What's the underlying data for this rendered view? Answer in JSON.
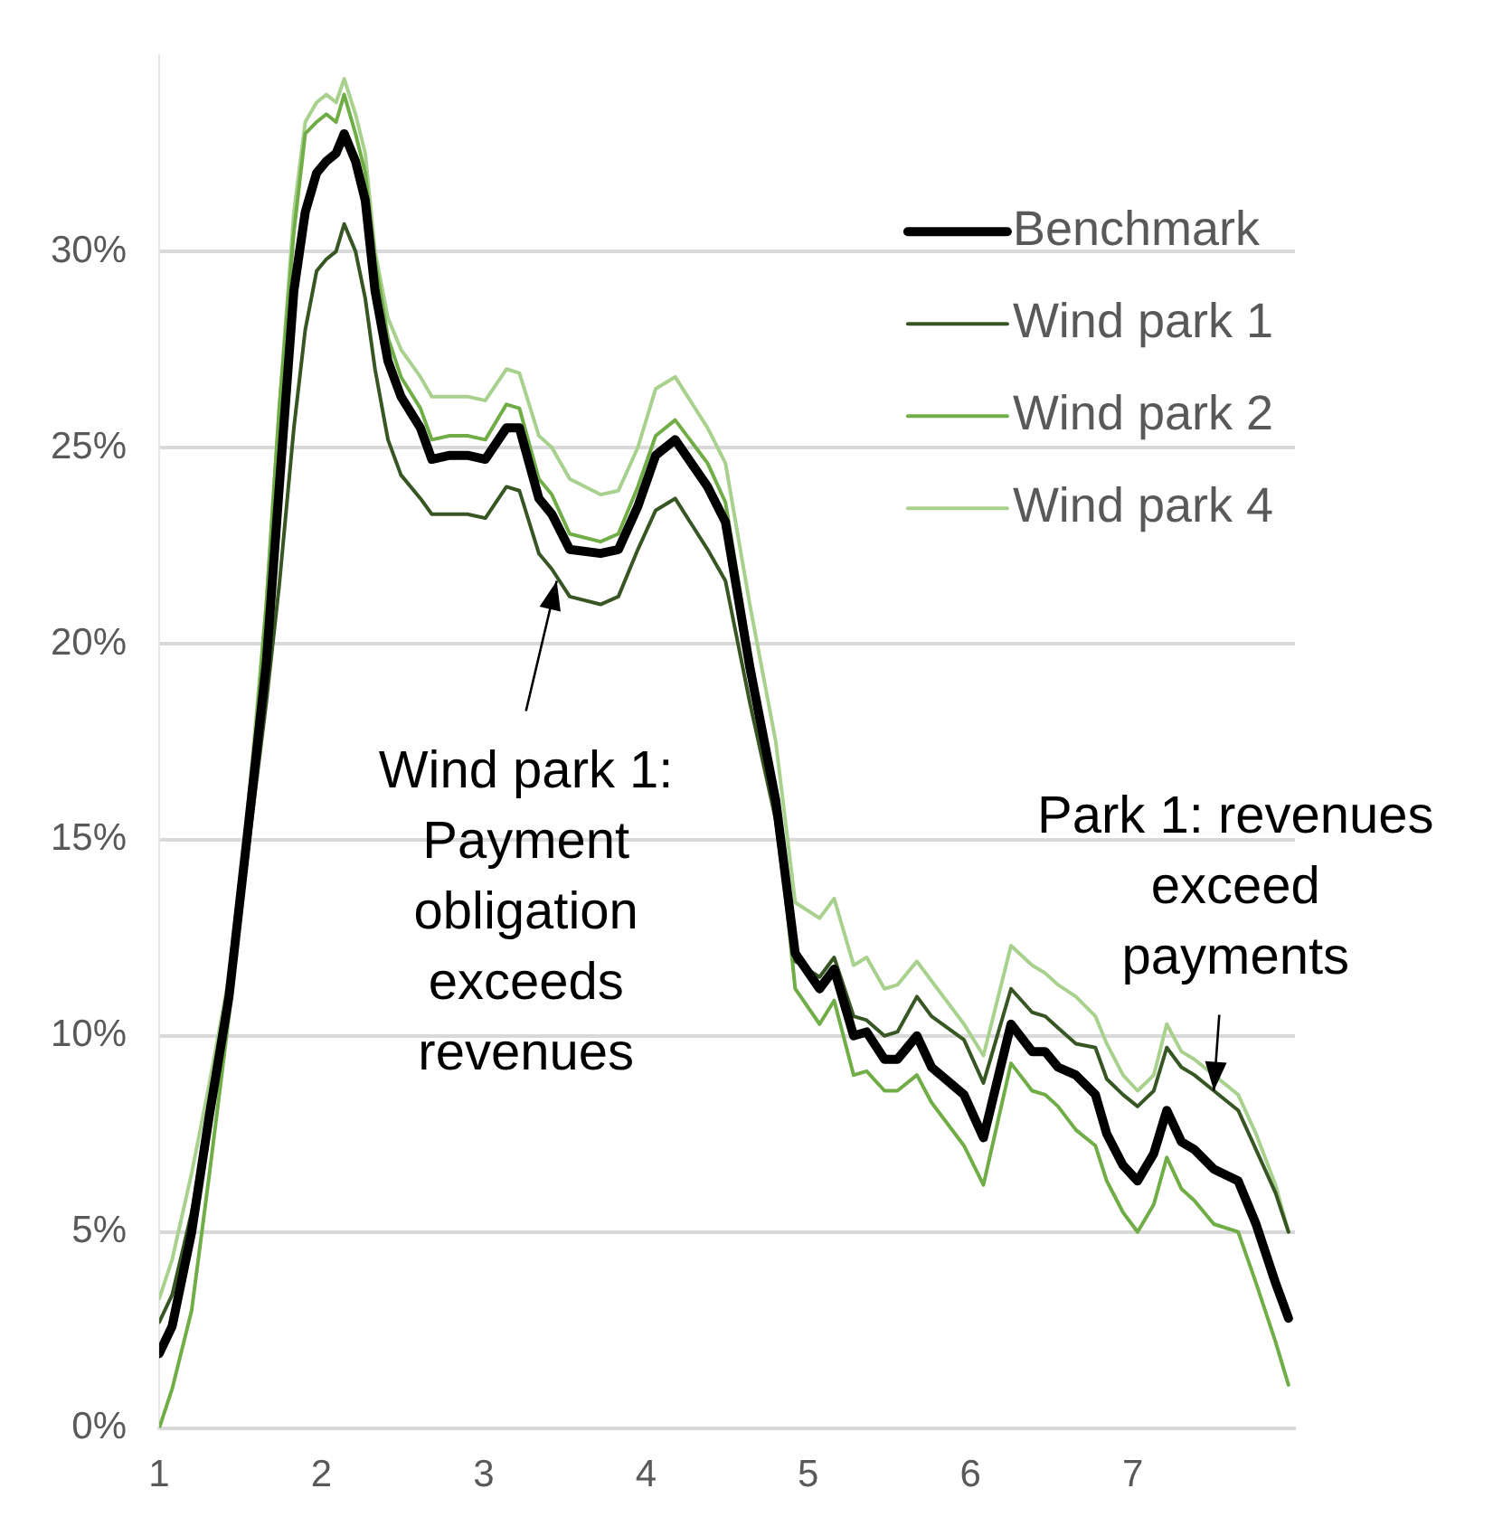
{
  "chart_data": {
    "type": "line",
    "x": [
      1.0,
      1.08,
      1.2,
      1.31,
      1.43,
      1.54,
      1.66,
      1.74,
      1.83,
      1.9,
      1.97,
      2.03,
      2.09,
      2.14,
      2.21,
      2.27,
      2.33,
      2.41,
      2.49,
      2.61,
      2.68,
      2.79,
      2.9,
      3.01,
      3.14,
      3.22,
      3.34,
      3.42,
      3.53,
      3.72,
      3.83,
      3.95,
      4.06,
      4.18,
      4.38,
      4.49,
      4.64,
      4.8,
      4.92,
      5.07,
      5.16,
      5.28,
      5.36,
      5.47,
      5.55,
      5.67,
      5.76,
      5.96,
      6.08,
      6.25,
      6.38,
      6.46,
      6.54,
      6.65,
      6.77,
      6.84,
      6.94,
      7.03,
      7.13,
      7.21,
      7.3,
      7.38,
      7.5,
      7.65,
      7.76,
      7.88,
      7.96
    ],
    "series": [
      {
        "name": "Benchmark",
        "color": "#000000",
        "values": [
          1.9,
          2.6,
          5.0,
          8.0,
          11.0,
          15.0,
          19.5,
          24.0,
          29.0,
          31.0,
          32.0,
          32.3,
          32.5,
          33.0,
          32.3,
          31.3,
          29.0,
          27.2,
          26.3,
          25.5,
          24.7,
          24.8,
          24.8,
          24.7,
          25.5,
          25.5,
          23.7,
          23.3,
          22.4,
          22.3,
          22.4,
          23.5,
          24.8,
          25.2,
          24.0,
          23.1,
          19.4,
          16.0,
          12.1,
          11.2,
          11.7,
          10.0,
          10.1,
          9.4,
          9.4,
          10.0,
          9.2,
          8.5,
          7.4,
          10.3,
          9.6,
          9.6,
          9.2,
          9.0,
          8.5,
          7.5,
          6.7,
          6.3,
          7.0,
          8.1,
          7.3,
          7.1,
          6.6,
          6.3,
          5.2,
          3.7,
          2.8
        ]
      },
      {
        "name": "Wind park 1",
        "color": "#375623",
        "values": [
          2.7,
          3.4,
          5.5,
          8.0,
          11.0,
          14.5,
          18.5,
          21.5,
          25.5,
          28.0,
          29.5,
          29.8,
          30.0,
          30.7,
          30.0,
          28.8,
          27.0,
          25.2,
          24.3,
          23.7,
          23.3,
          23.3,
          23.3,
          23.2,
          24.0,
          23.9,
          22.3,
          21.9,
          21.2,
          21.0,
          21.2,
          22.4,
          23.4,
          23.7,
          22.4,
          21.6,
          18.5,
          15.5,
          11.9,
          11.5,
          12.0,
          10.5,
          10.4,
          10.0,
          10.1,
          11.0,
          10.5,
          9.9,
          8.8,
          11.2,
          10.6,
          10.5,
          10.2,
          9.8,
          9.7,
          8.9,
          8.5,
          8.2,
          8.6,
          9.7,
          9.2,
          9.0,
          8.6,
          8.1,
          7.1,
          6.0,
          5.0
        ]
      },
      {
        "name": "Wind park 2",
        "color": "#70ad47",
        "values": [
          0.0,
          1.0,
          3.0,
          6.5,
          10.5,
          15.0,
          21.0,
          26.0,
          30.5,
          33.0,
          33.3,
          33.5,
          33.3,
          34.0,
          33.0,
          32.0,
          29.8,
          27.8,
          26.8,
          26.0,
          25.2,
          25.3,
          25.3,
          25.2,
          26.1,
          26.0,
          24.2,
          23.8,
          22.8,
          22.6,
          22.8,
          24.0,
          25.3,
          25.7,
          24.6,
          23.6,
          19.8,
          16.0,
          11.2,
          10.3,
          10.9,
          9.0,
          9.1,
          8.6,
          8.6,
          9.0,
          8.3,
          7.2,
          6.2,
          9.3,
          8.6,
          8.5,
          8.2,
          7.6,
          7.2,
          6.3,
          5.5,
          5.0,
          5.7,
          6.9,
          6.1,
          5.8,
          5.2,
          5.0,
          3.7,
          2.2,
          1.1
        ]
      },
      {
        "name": "Wind park 4",
        "color": "#a9d18e",
        "values": [
          3.3,
          4.3,
          6.5,
          8.8,
          11.5,
          15.5,
          21.0,
          26.0,
          31.0,
          33.3,
          33.8,
          34.0,
          33.8,
          34.4,
          33.5,
          32.5,
          30.0,
          28.3,
          27.5,
          26.8,
          26.3,
          26.3,
          26.3,
          26.2,
          27.0,
          26.9,
          25.3,
          25.0,
          24.2,
          23.8,
          23.9,
          25.0,
          26.5,
          26.8,
          25.5,
          24.6,
          21.0,
          17.5,
          13.4,
          13.0,
          13.5,
          11.8,
          12.0,
          11.2,
          11.3,
          11.9,
          11.4,
          10.3,
          9.5,
          12.3,
          11.8,
          11.6,
          11.3,
          11.0,
          10.5,
          9.8,
          9.0,
          8.6,
          9.0,
          10.3,
          9.6,
          9.4,
          9.0,
          8.5,
          7.5,
          6.2,
          5.0
        ]
      }
    ],
    "xlim": [
      1,
      8
    ],
    "xticks": [
      1,
      2,
      3,
      4,
      5,
      6,
      7
    ],
    "ylim": [
      0,
      35
    ],
    "yticks": [
      {
        "value": 0,
        "label": "0%"
      },
      {
        "value": 5,
        "label": "5%"
      },
      {
        "value": 10,
        "label": "10%"
      },
      {
        "value": 15,
        "label": "15%"
      },
      {
        "value": 20,
        "label": "20%"
      },
      {
        "value": 25,
        "label": "25%"
      },
      {
        "value": 30,
        "label": "30%"
      }
    ],
    "grid": "y",
    "legend": "top right",
    "marker": "none",
    "line_style": "solid",
    "annotations": [
      {
        "text": "Wind park 1:\nPayment\nobligation\nexceeds\nrevenues",
        "x": 3.45,
        "y": 21.6
      },
      {
        "text": "Park 1: revenues\nexceed\npayments",
        "x": 7.5,
        "y": 8.6
      }
    ]
  }
}
